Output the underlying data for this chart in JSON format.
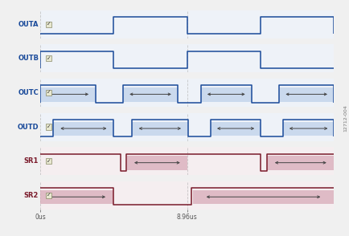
{
  "background_color": "#f0f0f0",
  "row_bg_blue": "#eef2f8",
  "row_bg_red": "#f5eef0",
  "grid_color": "#bbbbbb",
  "blue_line": "#1a4a9a",
  "blue_fill": "#b8cce8",
  "red_line": "#7a1a2a",
  "red_fill": "#d4a0b0",
  "label_blue": "#1a4a9a",
  "label_red": "#7a1a2a",
  "x_max": 17.92,
  "x_ticks": [
    0.0,
    8.96
  ],
  "x_tick_labels": [
    "0us",
    "8.96us"
  ],
  "figsize": [
    4.35,
    2.94
  ],
  "dpi": 100,
  "signals": [
    {
      "name": "OUTA",
      "color": "blue",
      "high_intervals": [
        [
          4.48,
          8.96
        ],
        [
          13.44,
          17.92
        ]
      ],
      "arrow_intervals": []
    },
    {
      "name": "OUTB",
      "color": "blue",
      "high_intervals": [
        [
          0.0,
          4.48
        ],
        [
          8.96,
          13.44
        ]
      ],
      "arrow_intervals": []
    },
    {
      "name": "OUTC",
      "color": "blue",
      "high_intervals": [
        [
          0.0,
          3.36
        ],
        [
          5.04,
          8.4
        ],
        [
          9.8,
          12.88
        ],
        [
          14.56,
          17.92
        ]
      ],
      "arrow_intervals": [
        [
          0.0,
          3.36
        ],
        [
          5.04,
          8.4
        ],
        [
          9.8,
          12.88
        ],
        [
          14.56,
          17.92
        ]
      ]
    },
    {
      "name": "OUTD",
      "color": "blue",
      "high_intervals": [
        [
          0.8,
          4.48
        ],
        [
          5.6,
          9.0
        ],
        [
          10.4,
          13.44
        ],
        [
          14.8,
          17.92
        ]
      ],
      "arrow_intervals": [
        [
          0.8,
          4.48
        ],
        [
          5.6,
          9.0
        ],
        [
          10.4,
          13.44
        ],
        [
          14.8,
          17.92
        ]
      ]
    },
    {
      "name": "SR1",
      "color": "red",
      "high_intervals": [
        [
          0.0,
          4.9
        ],
        [
          13.44,
          17.92
        ]
      ],
      "low_intervals": [
        [
          4.9,
          5.3
        ],
        [
          13.44,
          13.84
        ]
      ],
      "arrow_intervals": [
        [
          5.3,
          8.96
        ],
        [
          13.84,
          17.92
        ]
      ],
      "inverted": true,
      "dip_times": [
        4.9,
        13.44
      ]
    },
    {
      "name": "SR2",
      "color": "red",
      "high_intervals": [
        [
          0.0,
          4.48
        ],
        [
          8.96,
          17.92
        ]
      ],
      "arrow_intervals": [
        [
          0.0,
          4.48
        ],
        [
          9.3,
          17.92
        ]
      ],
      "inverted": false,
      "dip_times": [
        8.96
      ]
    }
  ]
}
